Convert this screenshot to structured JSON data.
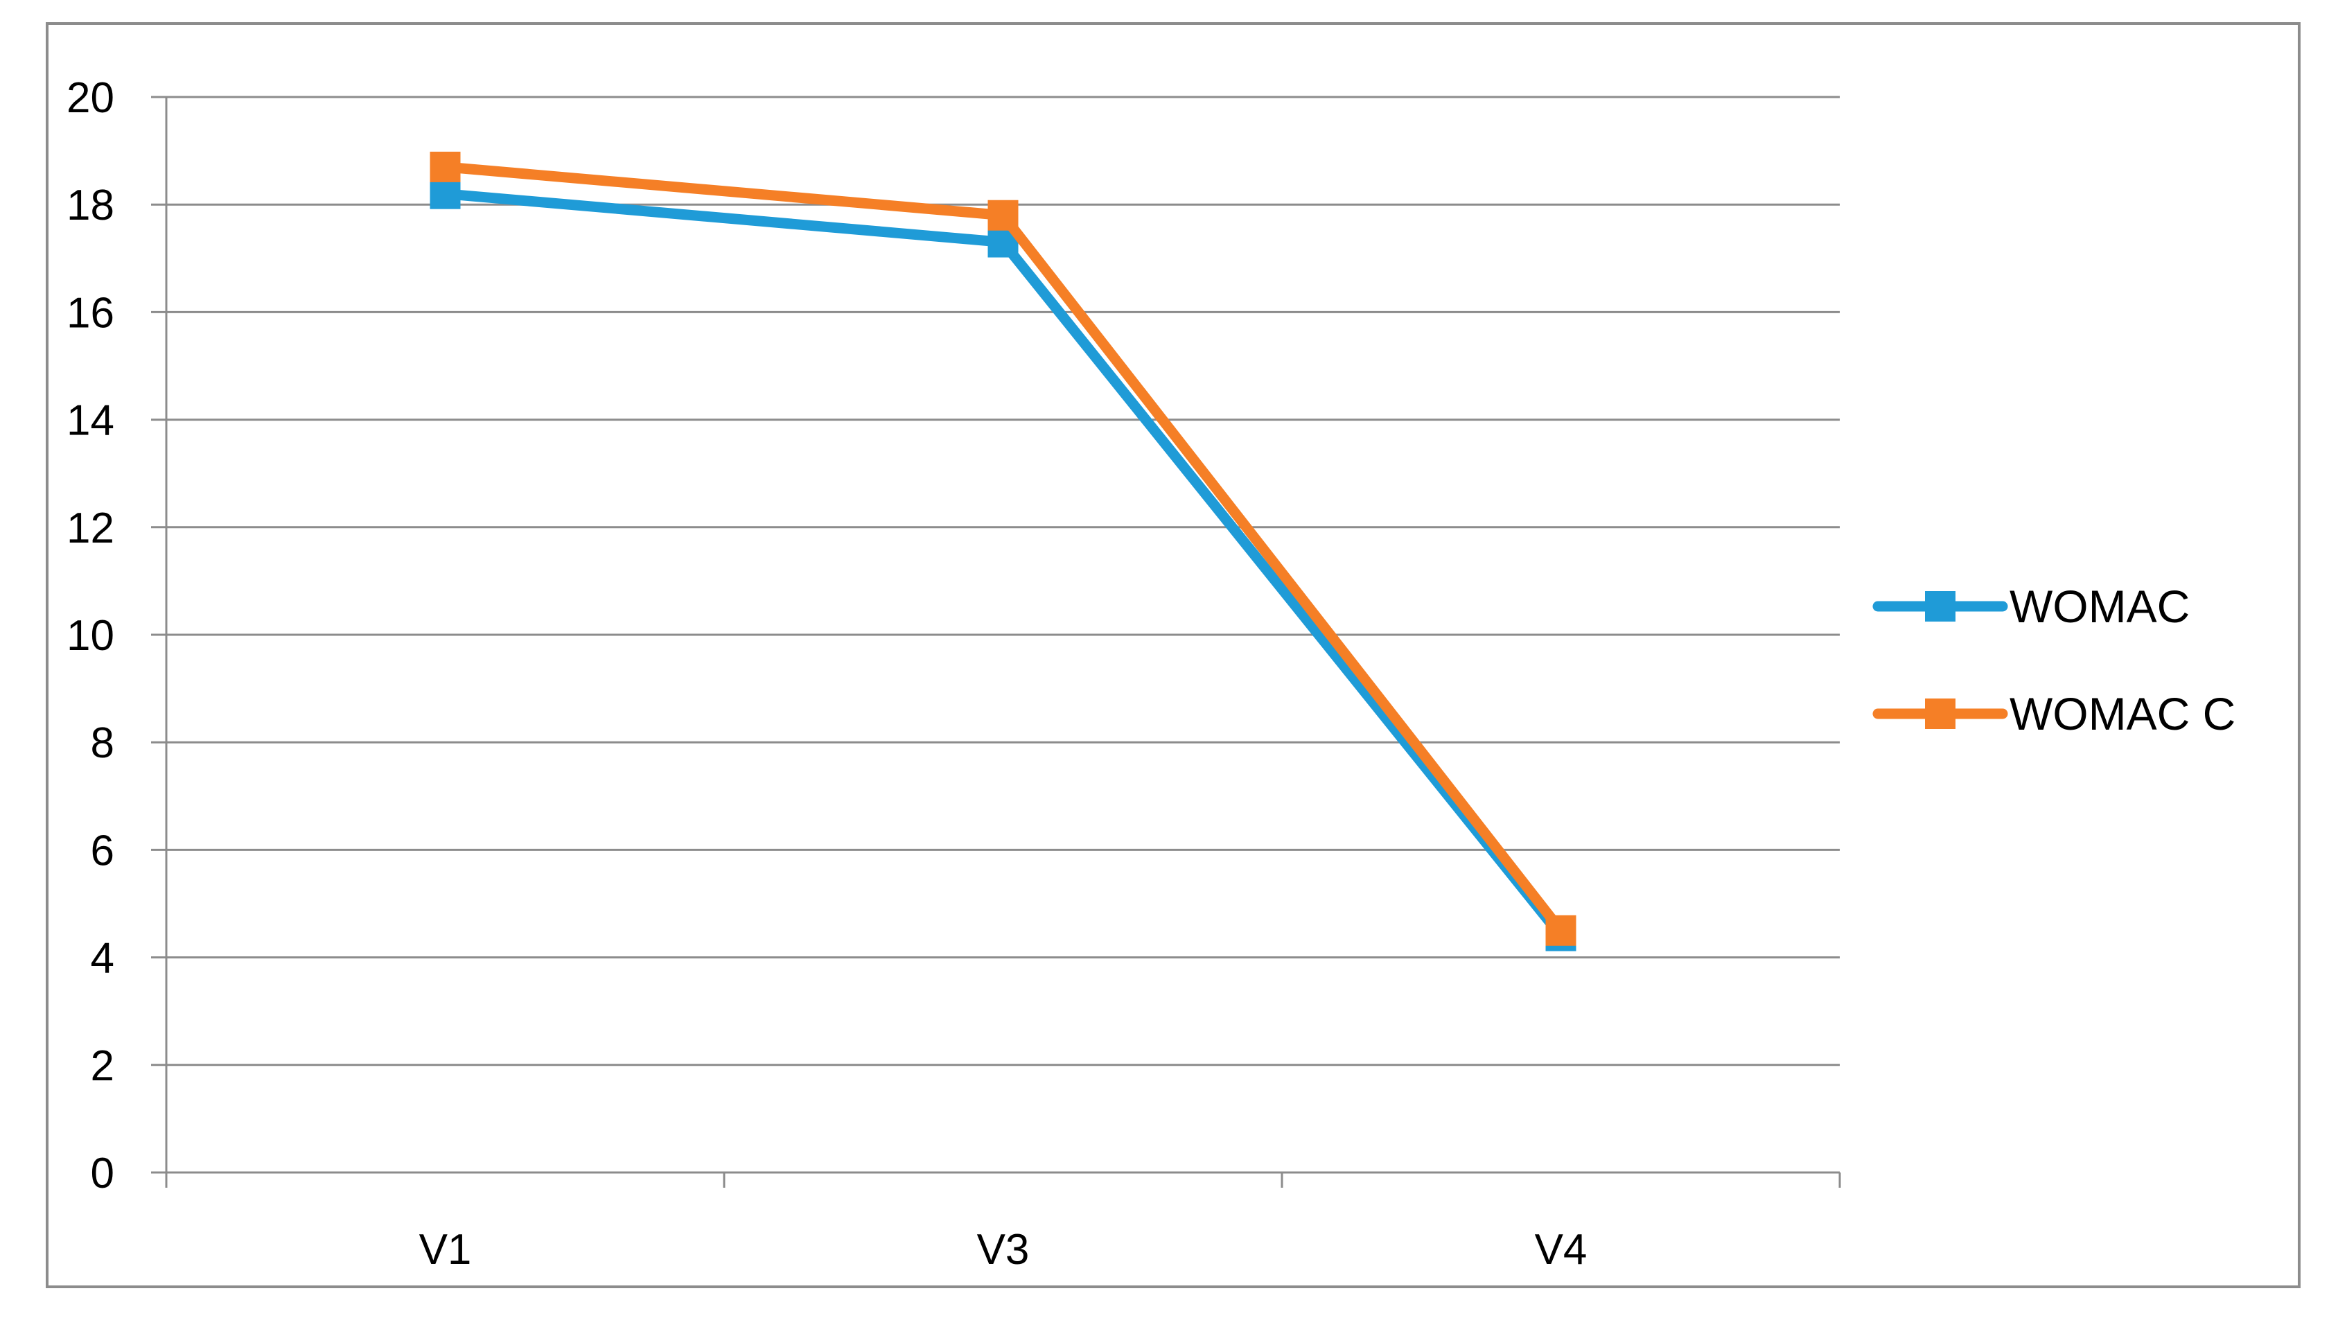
{
  "chart_data": {
    "type": "line",
    "title": "",
    "xlabel": "",
    "ylabel": "",
    "categories": [
      "V1",
      "V3",
      "V4"
    ],
    "ylim": [
      0,
      20
    ],
    "yticks": [
      0,
      2,
      4,
      6,
      8,
      10,
      12,
      14,
      16,
      18,
      20
    ],
    "grid": true,
    "legend_position": "right",
    "series": [
      {
        "name": "WOMAC",
        "values": [
          18.2,
          17.3,
          4.4
        ],
        "color": "#1f9bd7",
        "marker": "square"
      },
      {
        "name": "WOMAC C",
        "values": [
          18.7,
          17.8,
          4.5
        ],
        "color": "#f57f26",
        "marker": "square"
      }
    ]
  }
}
